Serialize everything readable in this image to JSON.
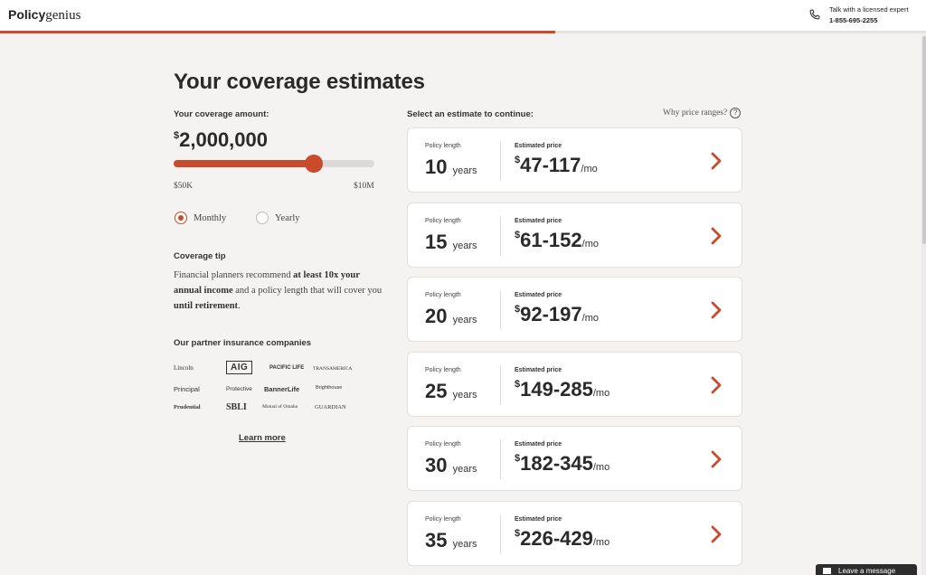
{
  "header": {
    "logo_bold": "Policy",
    "logo_light": "genius",
    "expert_label": "Talk with a licensed expert",
    "phone": "1-855-695-2255",
    "progress_fraction": 0.6
  },
  "title": "Your coverage estimates",
  "coverage": {
    "label": "Your coverage amount:",
    "currency": "$",
    "amount": "2,000,000",
    "slider_fraction": 0.697,
    "min": "$50K",
    "max": "$10M"
  },
  "frequency": {
    "options": [
      "Monthly",
      "Yearly"
    ],
    "selected": "Monthly"
  },
  "tip": {
    "heading": "Coverage tip",
    "t1": "Financial planners recommend ",
    "b1": "at least 10x your annual income",
    "t2": " and a policy length that will cover you ",
    "b2": "until retirement",
    "t3": "."
  },
  "partners": {
    "heading": "Our partner insurance companies",
    "logos": [
      "Lincoln",
      "AIG",
      "PACIFIC LIFE",
      "TRANSAMERICA",
      "Principal",
      "Protective",
      "BannerLife",
      "Brighthouse",
      "Prudential",
      "SBLI",
      "Mutual of Omaha",
      "GUARDIAN"
    ],
    "learn_more": "Learn more"
  },
  "estimates": {
    "select_label": "Select an estimate to continue:",
    "why_label": "Why price ranges?",
    "policy_length_label": "Policy length",
    "estimated_price_label": "Estimated price",
    "years_unit": "years",
    "per_month": "/mo",
    "currency": "$",
    "cards": [
      {
        "years": "10",
        "price": "47-117"
      },
      {
        "years": "15",
        "price": "61-152"
      },
      {
        "years": "20",
        "price": "92-197"
      },
      {
        "years": "25",
        "price": "149-285"
      },
      {
        "years": "30",
        "price": "182-345"
      },
      {
        "years": "35",
        "price": "226-429"
      }
    ]
  },
  "chat": {
    "label": "Leave a message"
  },
  "colors": {
    "accent": "#c84b2c",
    "background": "#f4f3f1"
  }
}
